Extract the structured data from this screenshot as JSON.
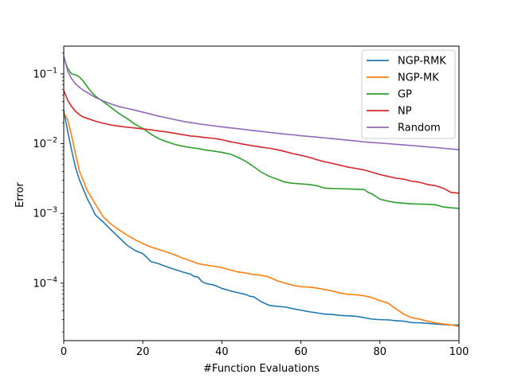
{
  "chart_data": {
    "type": "line",
    "xlabel": "#Function Evaluations",
    "ylabel": "Error",
    "xlim": [
      0,
      100
    ],
    "ylim": [
      1.5e-05,
      0.25
    ],
    "yscale": "log",
    "grid": false,
    "legend_position": "top-right",
    "x_ticks": [
      0,
      20,
      40,
      60,
      80,
      100
    ],
    "x_tick_labels": [
      "0",
      "20",
      "40",
      "60",
      "80",
      "100"
    ],
    "y_major_ticks": [
      0.0001,
      0.001,
      0.01,
      0.1
    ],
    "y_tick_labels": [
      {
        "base": "10",
        "exp": "−4"
      },
      {
        "base": "10",
        "exp": "−3"
      },
      {
        "base": "10",
        "exp": "−2"
      },
      {
        "base": "10",
        "exp": "−1"
      }
    ],
    "series": [
      {
        "name": "NGP-RMK",
        "color": "#1f77b4",
        "x": [
          0,
          1,
          2,
          3,
          4,
          5,
          6,
          7,
          8,
          10,
          12,
          14,
          16,
          18,
          20,
          21,
          22,
          24,
          26,
          28,
          30,
          32,
          33,
          34,
          35,
          36,
          38,
          40,
          42,
          44,
          46,
          47,
          48,
          50,
          52,
          54,
          56,
          58,
          60,
          62,
          64,
          66,
          68,
          70,
          72,
          74,
          76,
          78,
          80,
          82,
          84,
          86,
          88,
          90,
          92,
          94,
          96,
          98,
          100
        ],
        "y": [
          0.03,
          0.015,
          0.008,
          0.0045,
          0.003,
          0.0022,
          0.0016,
          0.00125,
          0.00095,
          0.00075,
          0.00058,
          0.00045,
          0.00035,
          0.000295,
          0.000265,
          0.000235,
          0.000205,
          0.00019,
          0.000172,
          0.000158,
          0.000145,
          0.000135,
          0.000125,
          0.000122,
          0.000105,
          9.9e-05,
          9.4e-05,
          8.4e-05,
          7.8e-05,
          7.3e-05,
          6.9e-05,
          6.5e-05,
          6.4e-05,
          5.4e-05,
          4.8e-05,
          4.65e-05,
          4.55e-05,
          4.3e-05,
          4.1e-05,
          3.9e-05,
          3.75e-05,
          3.6e-05,
          3.55e-05,
          3.45e-05,
          3.4e-05,
          3.35e-05,
          3.2e-05,
          3.05e-05,
          3e-05,
          2.98e-05,
          2.9e-05,
          2.85e-05,
          2.72e-05,
          2.7e-05,
          2.65e-05,
          2.6e-05,
          2.55e-05,
          2.52e-05,
          2.5e-05
        ]
      },
      {
        "name": "NGP-MK",
        "color": "#ff7f0e",
        "x": [
          0,
          1,
          2,
          3,
          4,
          5,
          6,
          7,
          8,
          10,
          12,
          14,
          16,
          18,
          20,
          22,
          24,
          26,
          28,
          30,
          32,
          34,
          36,
          38,
          40,
          42,
          44,
          46,
          48,
          50,
          52,
          54,
          56,
          58,
          60,
          62,
          64,
          66,
          68,
          70,
          72,
          74,
          76,
          78,
          80,
          82,
          84,
          86,
          88,
          90,
          92,
          94,
          96,
          98,
          100
        ],
        "y": [
          0.028,
          0.022,
          0.013,
          0.007,
          0.004,
          0.0029,
          0.0021,
          0.0017,
          0.00135,
          0.00089,
          0.0007,
          0.00058,
          0.00049,
          0.00042,
          0.00037,
          0.00033,
          0.000305,
          0.00028,
          0.000255,
          0.00023,
          0.00021,
          0.00019,
          0.000182,
          0.000175,
          0.000167,
          0.000155,
          0.000145,
          0.00014,
          0.000133,
          0.00013,
          0.000122,
          0.000108,
          0.0001,
          9.3e-05,
          8.9e-05,
          8.8e-05,
          8.5e-05,
          8.1e-05,
          7.7e-05,
          7.2e-05,
          6.9e-05,
          6.8e-05,
          6.6e-05,
          6.2e-05,
          5.6e-05,
          5.2e-05,
          4.3e-05,
          3.6e-05,
          3.2e-05,
          3.05e-05,
          2.85e-05,
          2.7e-05,
          2.6e-05,
          2.52e-05,
          2.4e-05
        ]
      },
      {
        "name": "GP",
        "color": "#2ca02c",
        "x": [
          0,
          1,
          2,
          3,
          4,
          5,
          6,
          7,
          8,
          10,
          12,
          14,
          16,
          18,
          20,
          22,
          24,
          26,
          28,
          30,
          32,
          34,
          36,
          38,
          40,
          42,
          44,
          46,
          48,
          50,
          52,
          54,
          56,
          58,
          60,
          62,
          64,
          66,
          68,
          70,
          72,
          74,
          76,
          77,
          78,
          80,
          82,
          84,
          86,
          88,
          90,
          92,
          94,
          96,
          98,
          100
        ],
        "y": [
          0.17,
          0.12,
          0.1,
          0.097,
          0.09,
          0.078,
          0.065,
          0.055,
          0.048,
          0.04,
          0.033,
          0.027,
          0.023,
          0.019,
          0.0165,
          0.0138,
          0.0118,
          0.0107,
          0.0098,
          0.0092,
          0.0088,
          0.0085,
          0.0081,
          0.0078,
          0.0075,
          0.0071,
          0.0064,
          0.0056,
          0.0047,
          0.0039,
          0.0034,
          0.0031,
          0.0028,
          0.0027,
          0.00265,
          0.0026,
          0.0025,
          0.0023,
          0.00228,
          0.00226,
          0.00224,
          0.00222,
          0.0022,
          0.002,
          0.0019,
          0.0016,
          0.0015,
          0.00143,
          0.0014,
          0.00137,
          0.00136,
          0.00135,
          0.00133,
          0.00124,
          0.0012,
          0.00118
        ]
      },
      {
        "name": "NP",
        "color": "#d62728",
        "x": [
          0,
          1,
          2,
          3,
          4,
          5,
          6,
          8,
          10,
          12,
          14,
          16,
          18,
          20,
          22,
          24,
          26,
          28,
          30,
          32,
          34,
          36,
          38,
          40,
          42,
          44,
          46,
          48,
          50,
          52,
          54,
          56,
          58,
          60,
          62,
          64,
          66,
          68,
          70,
          72,
          74,
          76,
          78,
          80,
          82,
          84,
          86,
          88,
          90,
          92,
          94,
          96,
          98,
          100
        ],
        "y": [
          0.058,
          0.042,
          0.034,
          0.029,
          0.026,
          0.024,
          0.023,
          0.021,
          0.0196,
          0.0185,
          0.0178,
          0.0172,
          0.0168,
          0.0163,
          0.0158,
          0.0152,
          0.0147,
          0.0141,
          0.0135,
          0.0129,
          0.0126,
          0.0122,
          0.0119,
          0.0114,
          0.0107,
          0.0102,
          0.0097,
          0.0093,
          0.0089,
          0.0086,
          0.0082,
          0.0077,
          0.0072,
          0.0068,
          0.0064,
          0.0059,
          0.0055,
          0.0052,
          0.0049,
          0.0046,
          0.0044,
          0.0042,
          0.0039,
          0.0036,
          0.0034,
          0.0032,
          0.0031,
          0.0029,
          0.0028,
          0.0026,
          0.0025,
          0.0023,
          0.002,
          0.00195
        ]
      },
      {
        "name": "Random",
        "color": "#9467bd",
        "x": [
          0,
          1,
          2,
          3,
          4,
          5,
          6,
          8,
          10,
          12,
          14,
          16,
          18,
          20,
          22,
          24,
          26,
          28,
          30,
          32,
          34,
          36,
          38,
          40,
          42,
          44,
          46,
          48,
          50,
          52,
          54,
          56,
          58,
          60,
          62,
          64,
          66,
          68,
          70,
          72,
          74,
          76,
          78,
          80,
          82,
          84,
          86,
          88,
          90,
          92,
          94,
          96,
          98,
          100
        ],
        "y": [
          0.18,
          0.11,
          0.085,
          0.072,
          0.064,
          0.058,
          0.054,
          0.046,
          0.041,
          0.037,
          0.034,
          0.032,
          0.0302,
          0.0283,
          0.0265,
          0.0248,
          0.0235,
          0.0222,
          0.021,
          0.0201,
          0.0193,
          0.0186,
          0.018,
          0.0174,
          0.0169,
          0.0164,
          0.0159,
          0.0154,
          0.015,
          0.0145,
          0.0141,
          0.0137,
          0.0134,
          0.013,
          0.0127,
          0.0124,
          0.0121,
          0.0118,
          0.0115,
          0.0112,
          0.0109,
          0.0106,
          0.0104,
          0.0102,
          0.01,
          0.0098,
          0.0096,
          0.0094,
          0.0092,
          0.009,
          0.0088,
          0.0086,
          0.0084,
          0.0082
        ]
      }
    ]
  }
}
